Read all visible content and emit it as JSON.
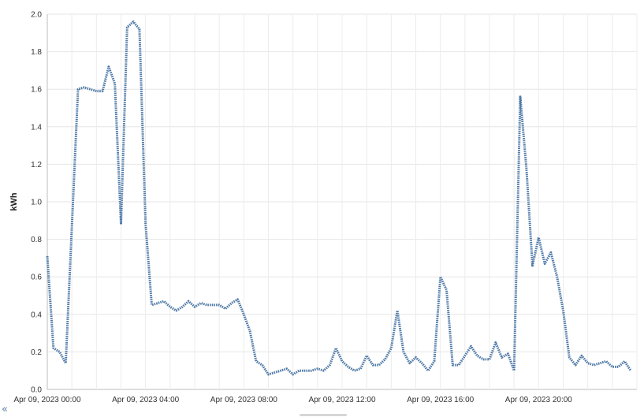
{
  "ui": {
    "collapse_glyph": "«"
  },
  "chart_data": {
    "type": "line",
    "ylabel": "kWh",
    "xlabel": "",
    "ylim": [
      0,
      2.0
    ],
    "xlim_hours": [
      0,
      24
    ],
    "yticks": [
      "0.0",
      "0.2",
      "0.4",
      "0.6",
      "0.8",
      "1.0",
      "1.2",
      "1.4",
      "1.6",
      "1.8",
      "2.0"
    ],
    "xticks": [
      {
        "hour": 0,
        "label": "Apr 09, 2023 00:00"
      },
      {
        "hour": 4,
        "label": "Apr 09, 2023 04:00"
      },
      {
        "hour": 8,
        "label": "Apr 09, 2023 08:00"
      },
      {
        "hour": 12,
        "label": "Apr 09, 2023 12:00"
      },
      {
        "hour": 16,
        "label": "Apr 09, 2023 16:00"
      },
      {
        "hour": 20,
        "label": "Apr 09, 2023 20:00"
      }
    ],
    "line_color": "#4e79a7",
    "grid": true,
    "series": [
      {
        "x_step_minutes": 15,
        "values": [
          0.71,
          0.22,
          0.2,
          0.14,
          0.87,
          1.6,
          1.61,
          1.6,
          1.59,
          1.59,
          1.72,
          1.63,
          0.88,
          1.93,
          1.96,
          1.92,
          0.88,
          0.45,
          0.46,
          0.47,
          0.44,
          0.42,
          0.44,
          0.47,
          0.44,
          0.46,
          0.45,
          0.45,
          0.45,
          0.43,
          0.46,
          0.48,
          0.4,
          0.31,
          0.15,
          0.13,
          0.08,
          0.09,
          0.1,
          0.11,
          0.08,
          0.1,
          0.1,
          0.1,
          0.11,
          0.1,
          0.13,
          0.22,
          0.15,
          0.12,
          0.1,
          0.11,
          0.18,
          0.13,
          0.13,
          0.16,
          0.22,
          0.42,
          0.2,
          0.14,
          0.17,
          0.14,
          0.1,
          0.15,
          0.6,
          0.53,
          0.13,
          0.13,
          0.18,
          0.23,
          0.18,
          0.16,
          0.16,
          0.25,
          0.17,
          0.19,
          0.1,
          1.56,
          1.18,
          0.66,
          0.81,
          0.67,
          0.73,
          0.6,
          0.42,
          0.17,
          0.13,
          0.18,
          0.14,
          0.13,
          0.14,
          0.15,
          0.12,
          0.12,
          0.15,
          0.1
        ]
      }
    ]
  }
}
